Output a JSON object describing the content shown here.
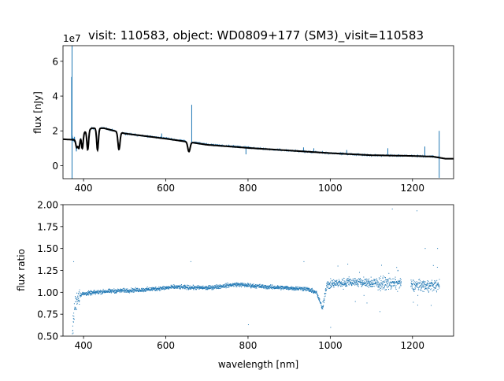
{
  "chart_data": [
    {
      "type": "line",
      "title": "visit: 110583, object: WD0809+177 (SM3)_visit=110583",
      "offset_text": "1e7",
      "xlabel": "",
      "ylabel": "flux [nJy]",
      "xlim": [
        350,
        1300
      ],
      "ylim": [
        -0.75,
        6.9
      ],
      "y_scale": 10000000.0,
      "xticks": [
        400,
        600,
        800,
        1000,
        1200
      ],
      "xtick_labels": [
        "400",
        "600",
        "800",
        "1000",
        "1200"
      ],
      "yticks": [
        0,
        2,
        4,
        6
      ],
      "ytick_labels": [
        "0",
        "2",
        "4",
        "6"
      ],
      "colors": {
        "data": "#1f77b4",
        "model": "#000000"
      },
      "model_continuum": {
        "x": [
          350,
          380,
          400,
          420,
          450,
          500,
          550,
          600,
          650,
          700,
          800,
          900,
          1000,
          1100,
          1200,
          1250,
          1280,
          1300
        ],
        "y": [
          1.52,
          1.48,
          1.9,
          2.15,
          2.15,
          1.85,
          1.7,
          1.55,
          1.38,
          1.2,
          1.02,
          0.87,
          0.72,
          0.6,
          0.56,
          0.52,
          0.4,
          0.4
        ]
      },
      "absorption_lines": [
        {
          "x": 383.5,
          "depth": 0.5
        },
        {
          "x": 388.9,
          "depth": 0.65
        },
        {
          "x": 397,
          "depth": 0.85
        },
        {
          "x": 410.2,
          "depth": 1.1
        },
        {
          "x": 434,
          "depth": 1.25
        },
        {
          "x": 486.1,
          "depth": 1.0
        },
        {
          "x": 656.3,
          "depth": 0.55
        }
      ],
      "data_spikes": [
        {
          "x": 372,
          "y": 6.9
        },
        {
          "x": 372,
          "y": -0.75
        },
        {
          "x": 371,
          "y": 5.1
        },
        {
          "x": 663,
          "y": 3.5
        },
        {
          "x": 1265,
          "y": 2.0
        },
        {
          "x": 1265,
          "y": -0.7
        },
        {
          "x": 1230,
          "y": 1.1
        },
        {
          "x": 1140,
          "y": 1.0
        },
        {
          "x": 1040,
          "y": 0.9
        },
        {
          "x": 935,
          "y": 1.05
        },
        {
          "x": 960,
          "y": 1.0
        },
        {
          "x": 590,
          "y": 1.85
        },
        {
          "x": 795,
          "y": 0.65
        }
      ]
    },
    {
      "type": "scatter",
      "xlabel": "wavelength [nm]",
      "ylabel": "flux ratio",
      "xlim": [
        350,
        1300
      ],
      "ylim": [
        0.5,
        2.0
      ],
      "xticks": [
        400,
        600,
        800,
        1000,
        1200
      ],
      "xtick_labels": [
        "400",
        "600",
        "800",
        "1000",
        "1200"
      ],
      "yticks": [
        0.5,
        0.75,
        1.0,
        1.25,
        1.5,
        1.75,
        2.0
      ],
      "ytick_labels": [
        "0.50",
        "0.75",
        "1.00",
        "1.25",
        "1.50",
        "1.75",
        "2.00"
      ],
      "color": "#1f77b4",
      "trend": {
        "x": [
          372,
          378,
          385,
          395,
          450,
          550,
          620,
          700,
          770,
          850,
          940,
          965,
          980,
          990,
          1010,
          1050,
          1100,
          1170,
          1195,
          1265
        ],
        "y": [
          0.55,
          0.85,
          0.95,
          0.98,
          1.01,
          1.03,
          1.06,
          1.05,
          1.09,
          1.06,
          1.04,
          1.0,
          0.82,
          1.08,
          1.1,
          1.12,
          1.1,
          1.1,
          1.08,
          1.08
        ]
      },
      "gaps": [
        [
          1172,
          1195
        ]
      ],
      "outliers": [
        {
          "x": 1150,
          "y": 1.95
        },
        {
          "x": 1210,
          "y": 1.93
        },
        {
          "x": 800,
          "y": 0.63
        },
        {
          "x": 935,
          "y": 1.35
        },
        {
          "x": 660,
          "y": 1.35
        },
        {
          "x": 375,
          "y": 1.35
        },
        {
          "x": 1000,
          "y": 0.6
        },
        {
          "x": 1230,
          "y": 1.5
        },
        {
          "x": 1260,
          "y": 1.5
        },
        {
          "x": 1120,
          "y": 0.78
        }
      ]
    }
  ]
}
